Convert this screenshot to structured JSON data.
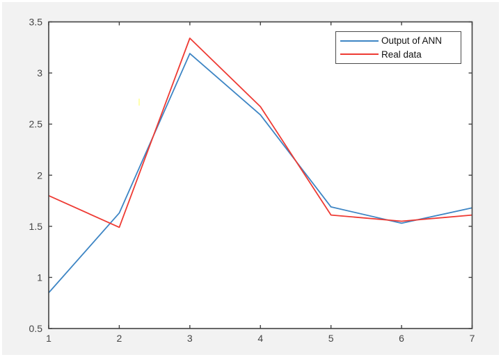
{
  "chart_data": {
    "type": "line",
    "title": "",
    "xlabel": "",
    "ylabel": "",
    "x": [
      1,
      2,
      3,
      4,
      5,
      6,
      7
    ],
    "series": [
      {
        "name": "Output of ANN",
        "color": "#3d85c4",
        "values": [
          0.85,
          1.63,
          3.19,
          2.59,
          1.69,
          1.53,
          1.68
        ]
      },
      {
        "name": "Real data",
        "color": "#ee3a33",
        "values": [
          1.8,
          1.49,
          3.34,
          2.67,
          1.61,
          1.55,
          1.61
        ]
      }
    ],
    "xlim": [
      1,
      7
    ],
    "ylim": [
      0.5,
      3.5
    ],
    "x_ticks": [
      1,
      2,
      3,
      4,
      5,
      6,
      7
    ],
    "y_ticks": [
      0.5,
      1,
      1.5,
      2,
      2.5,
      3,
      3.5
    ],
    "grid": false,
    "legend_position": "top-right",
    "legend_entries": [
      "Output of ANN",
      "Real data"
    ]
  },
  "colors": {
    "figure_background": "#f2f2f2",
    "plot_background": "#ffffff",
    "axis": "#424242",
    "tick_label": "#454545",
    "legend_border": "#4a4a4a",
    "legend_text": "#111111",
    "artifact_yellow": "#ffffa0"
  }
}
